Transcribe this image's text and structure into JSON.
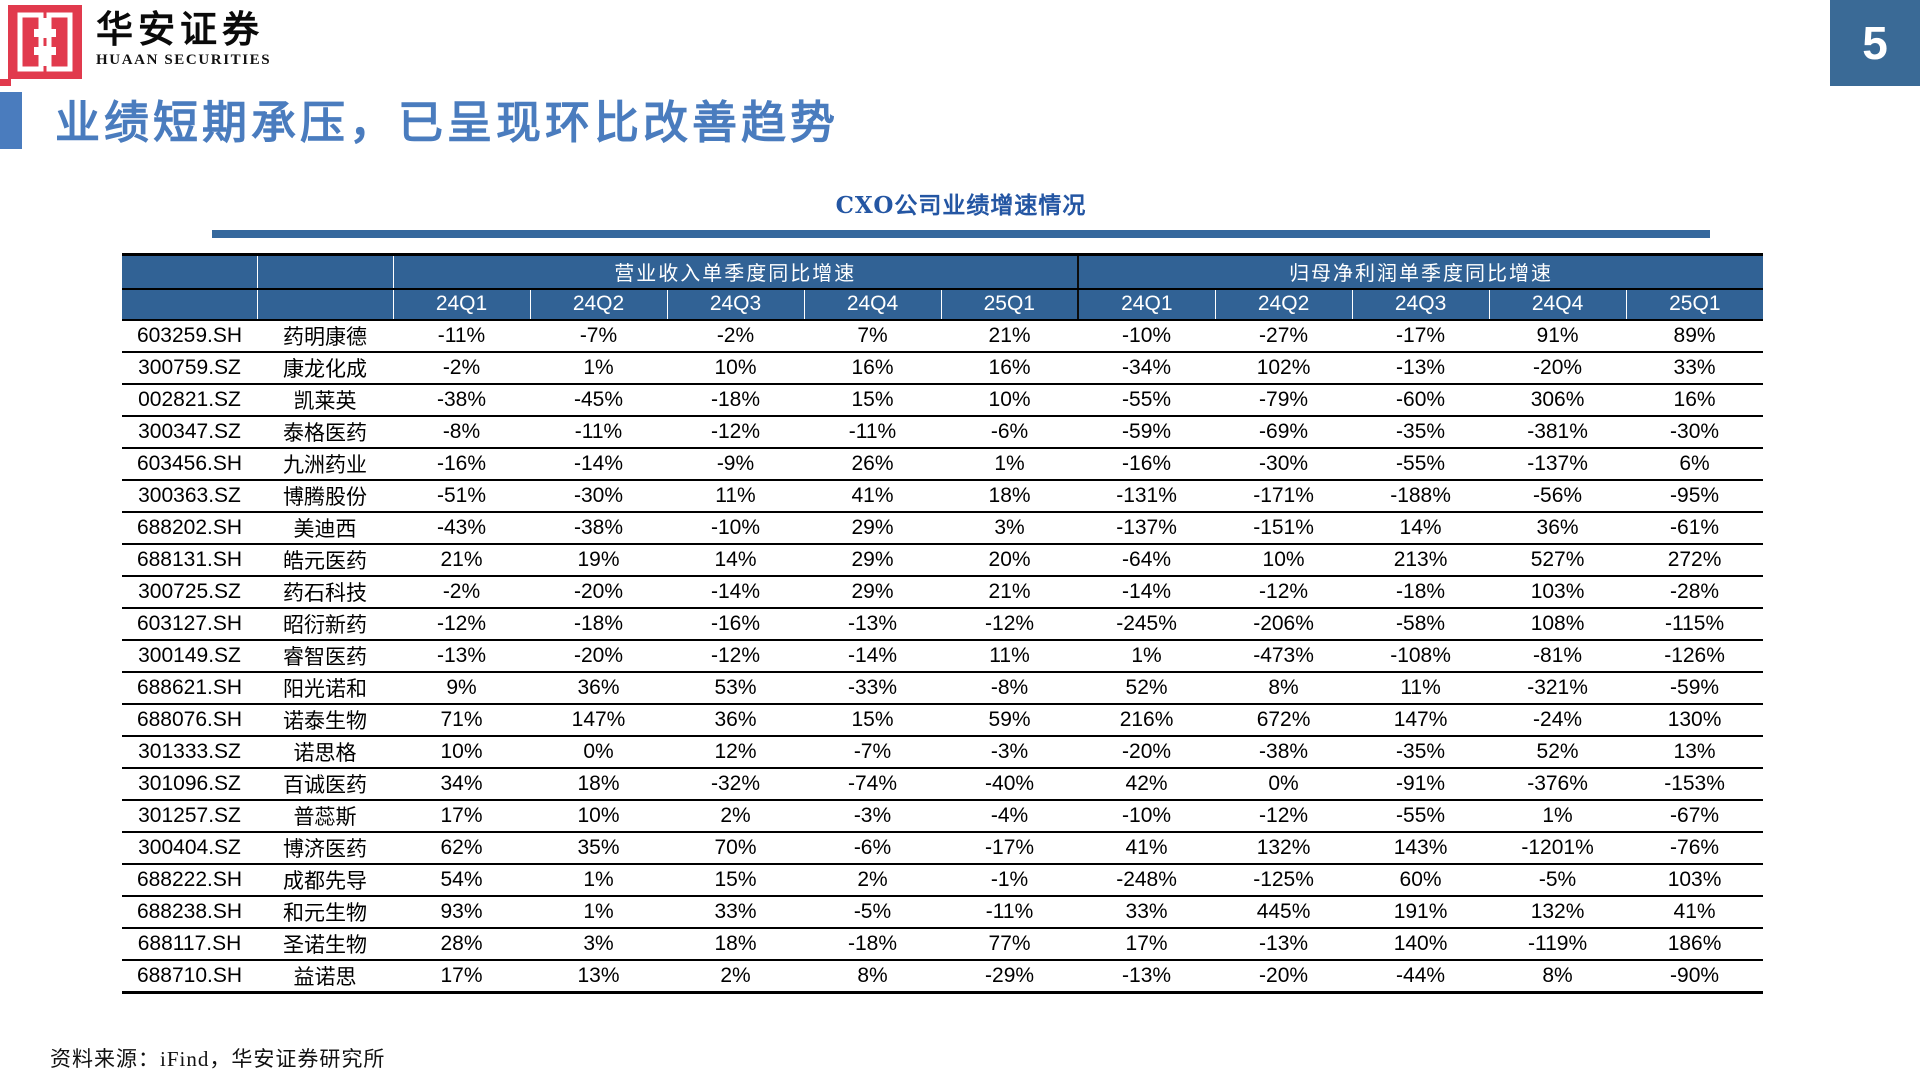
{
  "brand": {
    "logo_cn": "华安证券",
    "logo_en": "HUAAN SECURITIES"
  },
  "page_number": "5",
  "slide_title": "业绩短期承压，已呈现环比改善趋势",
  "table_title": "CXO公司业绩增速情况",
  "footer": "资料来源：iFind，华安证券研究所",
  "colors": {
    "logo_red": "#E13A4D",
    "header_blue": "#316295",
    "accent_blue": "#4A7CBE",
    "table_title_blue": "#2456A3",
    "underline_blue": "#35689D",
    "page_badge_blue": "#3A6A96"
  },
  "table": {
    "group_headers": [
      "营业收入单季度同比增速",
      "归母净利润单季度同比增速"
    ],
    "quarter_headers": [
      "24Q1",
      "24Q2",
      "24Q3",
      "24Q4",
      "25Q1",
      "24Q1",
      "24Q2",
      "24Q3",
      "24Q4",
      "25Q1"
    ],
    "rows": [
      {
        "code": "603259.SH",
        "name": "药明康德",
        "values": [
          "-11%",
          "-7%",
          "-2%",
          "7%",
          "21%",
          "-10%",
          "-27%",
          "-17%",
          "91%",
          "89%"
        ]
      },
      {
        "code": "300759.SZ",
        "name": "康龙化成",
        "values": [
          "-2%",
          "1%",
          "10%",
          "16%",
          "16%",
          "-34%",
          "102%",
          "-13%",
          "-20%",
          "33%"
        ]
      },
      {
        "code": "002821.SZ",
        "name": "凯莱英",
        "values": [
          "-38%",
          "-45%",
          "-18%",
          "15%",
          "10%",
          "-55%",
          "-79%",
          "-60%",
          "306%",
          "16%"
        ]
      },
      {
        "code": "300347.SZ",
        "name": "泰格医药",
        "values": [
          "-8%",
          "-11%",
          "-12%",
          "-11%",
          "-6%",
          "-59%",
          "-69%",
          "-35%",
          "-381%",
          "-30%"
        ]
      },
      {
        "code": "603456.SH",
        "name": "九洲药业",
        "values": [
          "-16%",
          "-14%",
          "-9%",
          "26%",
          "1%",
          "-16%",
          "-30%",
          "-55%",
          "-137%",
          "6%"
        ]
      },
      {
        "code": "300363.SZ",
        "name": "博腾股份",
        "values": [
          "-51%",
          "-30%",
          "11%",
          "41%",
          "18%",
          "-131%",
          "-171%",
          "-188%",
          "-56%",
          "-95%"
        ]
      },
      {
        "code": "688202.SH",
        "name": "美迪西",
        "values": [
          "-43%",
          "-38%",
          "-10%",
          "29%",
          "3%",
          "-137%",
          "-151%",
          "14%",
          "36%",
          "-61%"
        ]
      },
      {
        "code": "688131.SH",
        "name": "皓元医药",
        "values": [
          "21%",
          "19%",
          "14%",
          "29%",
          "20%",
          "-64%",
          "10%",
          "213%",
          "527%",
          "272%"
        ]
      },
      {
        "code": "300725.SZ",
        "name": "药石科技",
        "values": [
          "-2%",
          "-20%",
          "-14%",
          "29%",
          "21%",
          "-14%",
          "-12%",
          "-18%",
          "103%",
          "-28%"
        ]
      },
      {
        "code": "603127.SH",
        "name": "昭衍新药",
        "values": [
          "-12%",
          "-18%",
          "-16%",
          "-13%",
          "-12%",
          "-245%",
          "-206%",
          "-58%",
          "108%",
          "-115%"
        ]
      },
      {
        "code": "300149.SZ",
        "name": "睿智医药",
        "values": [
          "-13%",
          "-20%",
          "-12%",
          "-14%",
          "11%",
          "1%",
          "-473%",
          "-108%",
          "-81%",
          "-126%"
        ]
      },
      {
        "code": "688621.SH",
        "name": "阳光诺和",
        "values": [
          "9%",
          "36%",
          "53%",
          "-33%",
          "-8%",
          "52%",
          "8%",
          "11%",
          "-321%",
          "-59%"
        ]
      },
      {
        "code": "688076.SH",
        "name": "诺泰生物",
        "values": [
          "71%",
          "147%",
          "36%",
          "15%",
          "59%",
          "216%",
          "672%",
          "147%",
          "-24%",
          "130%"
        ]
      },
      {
        "code": "301333.SZ",
        "name": "诺思格",
        "values": [
          "10%",
          "0%",
          "12%",
          "-7%",
          "-3%",
          "-20%",
          "-38%",
          "-35%",
          "52%",
          "13%"
        ]
      },
      {
        "code": "301096.SZ",
        "name": "百诚医药",
        "values": [
          "34%",
          "18%",
          "-32%",
          "-74%",
          "-40%",
          "42%",
          "0%",
          "-91%",
          "-376%",
          "-153%"
        ]
      },
      {
        "code": "301257.SZ",
        "name": "普蕊斯",
        "values": [
          "17%",
          "10%",
          "2%",
          "-3%",
          "-4%",
          "-10%",
          "-12%",
          "-55%",
          "1%",
          "-67%"
        ]
      },
      {
        "code": "300404.SZ",
        "name": "博济医药",
        "values": [
          "62%",
          "35%",
          "70%",
          "-6%",
          "-17%",
          "41%",
          "132%",
          "143%",
          "-1201%",
          "-76%"
        ]
      },
      {
        "code": "688222.SH",
        "name": "成都先导",
        "values": [
          "54%",
          "1%",
          "15%",
          "2%",
          "-1%",
          "-248%",
          "-125%",
          "60%",
          "-5%",
          "103%"
        ]
      },
      {
        "code": "688238.SH",
        "name": "和元生物",
        "values": [
          "93%",
          "1%",
          "33%",
          "-5%",
          "-11%",
          "33%",
          "445%",
          "191%",
          "132%",
          "41%"
        ]
      },
      {
        "code": "688117.SH",
        "name": "圣诺生物",
        "values": [
          "28%",
          "3%",
          "18%",
          "-18%",
          "77%",
          "17%",
          "-13%",
          "140%",
          "-119%",
          "186%"
        ]
      },
      {
        "code": "688710.SH",
        "name": "益诺思",
        "values": [
          "17%",
          "13%",
          "2%",
          "8%",
          "-29%",
          "-13%",
          "-20%",
          "-44%",
          "8%",
          "-90%"
        ]
      }
    ]
  }
}
